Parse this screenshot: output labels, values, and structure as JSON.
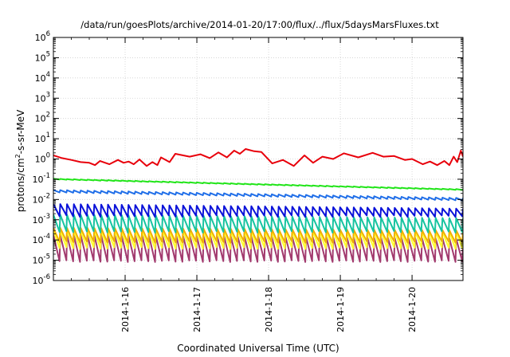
{
  "chart_data": {
    "type": "line",
    "title": "/data/run/goesPlots/archive/2014-01-20/17:00/flux/../flux/5daysMarsFluxes.txt",
    "xlabel": "Coordinated Universal Time (UTC)",
    "ylabel_base": "protons/cm",
    "ylabel_sup": "2",
    "ylabel_rest": "-s-sr-MeV",
    "yscale": "log",
    "ylim_exp": [
      -6,
      6
    ],
    "y_ticks": [
      {
        "base": "10",
        "exp": "-6",
        "e": -6
      },
      {
        "base": "10",
        "exp": "-5",
        "e": -5
      },
      {
        "base": "10",
        "exp": "-4",
        "e": -4
      },
      {
        "base": "10",
        "exp": "-3",
        "e": -3
      },
      {
        "base": "10",
        "exp": "-2",
        "e": -2
      },
      {
        "base": "10",
        "exp": "-1",
        "e": -1
      },
      {
        "base": "10",
        "exp": "0",
        "e": 0
      },
      {
        "base": "10",
        "exp": "1",
        "e": 1
      },
      {
        "base": "10",
        "exp": "2",
        "e": 2
      },
      {
        "base": "10",
        "exp": "3",
        "e": 3
      },
      {
        "base": "10",
        "exp": "4",
        "e": 4
      },
      {
        "base": "10",
        "exp": "5",
        "e": 5
      },
      {
        "base": "10",
        "exp": "6",
        "e": 6
      }
    ],
    "xlim_days": [
      0,
      5.71
    ],
    "x_ticks": [
      {
        "label": "2014-1-16",
        "day": 1
      },
      {
        "label": "2014-1-17",
        "day": 2
      },
      {
        "label": "2014-1-18",
        "day": 3
      },
      {
        "label": "2014-1-19",
        "day": 4
      },
      {
        "label": "2014-1-20",
        "day": 5
      }
    ],
    "grid": true,
    "series": [
      {
        "color": "#e8000b",
        "peaks": [
          [
            0.0,
            1.5
          ],
          [
            0.25,
            0.9
          ],
          [
            0.5,
            0.65
          ],
          [
            0.65,
            0.8
          ],
          [
            0.9,
            0.9
          ],
          [
            1.05,
            0.75
          ],
          [
            1.2,
            0.95
          ],
          [
            1.38,
            0.7
          ],
          [
            1.5,
            1.2
          ],
          [
            1.7,
            1.8
          ],
          [
            2.05,
            1.7
          ],
          [
            2.3,
            2.1
          ],
          [
            2.52,
            2.6
          ],
          [
            2.68,
            3.1
          ],
          [
            2.9,
            2.2
          ],
          [
            3.2,
            0.9
          ],
          [
            3.5,
            1.5
          ],
          [
            3.75,
            1.3
          ],
          [
            4.05,
            1.9
          ],
          [
            4.45,
            2.0
          ],
          [
            4.75,
            1.4
          ],
          [
            5.0,
            1.0
          ],
          [
            5.25,
            0.75
          ],
          [
            5.45,
            0.8
          ],
          [
            5.58,
            1.3
          ],
          [
            5.68,
            2.6
          ]
        ],
        "troughs": [
          [
            0.12,
            1.1
          ],
          [
            0.38,
            0.7
          ],
          [
            0.58,
            0.5
          ],
          [
            0.78,
            0.55
          ],
          [
            0.98,
            0.65
          ],
          [
            1.12,
            0.55
          ],
          [
            1.3,
            0.45
          ],
          [
            1.45,
            0.5
          ],
          [
            1.62,
            0.7
          ],
          [
            1.9,
            1.3
          ],
          [
            2.18,
            1.1
          ],
          [
            2.42,
            1.2
          ],
          [
            2.6,
            1.8
          ],
          [
            2.8,
            2.4
          ],
          [
            3.05,
            0.6
          ],
          [
            3.35,
            0.45
          ],
          [
            3.62,
            0.65
          ],
          [
            3.9,
            1.0
          ],
          [
            4.25,
            1.2
          ],
          [
            4.6,
            1.3
          ],
          [
            4.9,
            0.9
          ],
          [
            5.15,
            0.55
          ],
          [
            5.35,
            0.5
          ],
          [
            5.52,
            0.5
          ],
          [
            5.63,
            0.7
          ],
          [
            5.71,
            1.3
          ]
        ]
      },
      {
        "color": "#22e51a",
        "start": 0.1,
        "end": 0.03,
        "wiggle": 0.06,
        "teeth": 60
      },
      {
        "color": "#1f6ee8",
        "start": 0.025,
        "end": 0.01,
        "wiggle": 0.18,
        "teeth": 60
      },
      {
        "color": "#0a12d9",
        "start": 0.006,
        "end": 0.0035,
        "low": 0.0015,
        "teeth": 60
      },
      {
        "color": "#17c4a0",
        "start": 0.0018,
        "end": 0.0012,
        "low": 0.00025,
        "teeth": 60
      },
      {
        "color": "#f0b000",
        "start": 0.0004,
        "end": 0.0003,
        "low": 8e-05,
        "teeth": 60
      },
      {
        "color": "#ffff30",
        "start": 0.0003,
        "end": 0.00025,
        "low": 4e-05,
        "teeth": 60
      },
      {
        "color": "#a23a6e",
        "start": 0.00018,
        "end": 0.00012,
        "low": 9e-06,
        "teeth": 60
      }
    ]
  }
}
